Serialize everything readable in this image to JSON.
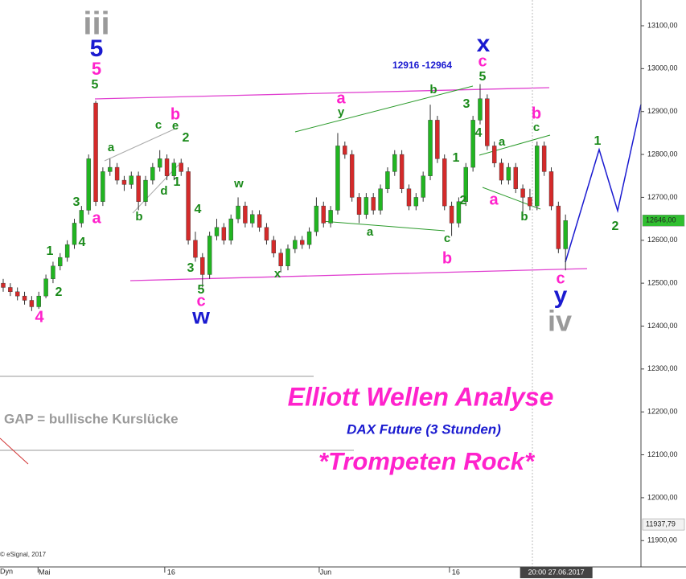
{
  "chart_data": {
    "type": "candlestick",
    "up_color": "#21b521",
    "down_color": "#d42a2a",
    "candles": [
      [
        12500,
        12510,
        12480,
        12490
      ],
      [
        12490,
        12500,
        12470,
        12480
      ],
      [
        12480,
        12490,
        12460,
        12470
      ],
      [
        12470,
        12480,
        12450,
        12460
      ],
      [
        12460,
        12470,
        12435,
        12445
      ],
      [
        12445,
        12480,
        12440,
        12470
      ],
      [
        12470,
        12520,
        12465,
        12510
      ],
      [
        12510,
        12550,
        12500,
        12540
      ],
      [
        12540,
        12570,
        12530,
        12560
      ],
      [
        12560,
        12600,
        12550,
        12590
      ],
      [
        12590,
        12650,
        12580,
        12640
      ],
      [
        12640,
        12680,
        12630,
        12670
      ],
      [
        12670,
        12800,
        12660,
        12790
      ],
      [
        12920,
        12925,
        12680,
        12690
      ],
      [
        12690,
        12770,
        12680,
        12760
      ],
      [
        12760,
        12790,
        12750,
        12770
      ],
      [
        12770,
        12780,
        12730,
        12740
      ],
      [
        12740,
        12750,
        12715,
        12730
      ],
      [
        12730,
        12760,
        12720,
        12750
      ],
      [
        12750,
        12760,
        12670,
        12690
      ],
      [
        12690,
        12750,
        12680,
        12740
      ],
      [
        12740,
        12780,
        12730,
        12770
      ],
      [
        12770,
        12810,
        12760,
        12790
      ],
      [
        12790,
        12800,
        12740,
        12750
      ],
      [
        12750,
        12790,
        12740,
        12780
      ],
      [
        12780,
        12790,
        12750,
        12760
      ],
      [
        12760,
        12770,
        12590,
        12600
      ],
      [
        12600,
        12620,
        12550,
        12560
      ],
      [
        12560,
        12570,
        12490,
        12520
      ],
      [
        12520,
        12620,
        12510,
        12610
      ],
      [
        12610,
        12650,
        12600,
        12630
      ],
      [
        12630,
        12640,
        12590,
        12600
      ],
      [
        12600,
        12660,
        12590,
        12650
      ],
      [
        12650,
        12700,
        12640,
        12680
      ],
      [
        12680,
        12690,
        12630,
        12640
      ],
      [
        12640,
        12670,
        12630,
        12660
      ],
      [
        12660,
        12670,
        12620,
        12630
      ],
      [
        12630,
        12640,
        12590,
        12600
      ],
      [
        12600,
        12610,
        12560,
        12570
      ],
      [
        12570,
        12580,
        12525,
        12540
      ],
      [
        12540,
        12590,
        12530,
        12580
      ],
      [
        12580,
        12610,
        12570,
        12600
      ],
      [
        12600,
        12610,
        12580,
        12590
      ],
      [
        12590,
        12630,
        12580,
        12620
      ],
      [
        12620,
        12700,
        12610,
        12680
      ],
      [
        12680,
        12690,
        12630,
        12640
      ],
      [
        12640,
        12680,
        12630,
        12670
      ],
      [
        12670,
        12850,
        12660,
        12820
      ],
      [
        12820,
        12830,
        12790,
        12800
      ],
      [
        12800,
        12810,
        12690,
        12700
      ],
      [
        12700,
        12710,
        12640,
        12660
      ],
      [
        12660,
        12710,
        12650,
        12700
      ],
      [
        12700,
        12710,
        12660,
        12670
      ],
      [
        12670,
        12730,
        12660,
        12720
      ],
      [
        12720,
        12770,
        12710,
        12760
      ],
      [
        12760,
        12810,
        12750,
        12800
      ],
      [
        12800,
        12810,
        12710,
        12720
      ],
      [
        12720,
        12730,
        12670,
        12680
      ],
      [
        12680,
        12710,
        12670,
        12700
      ],
      [
        12700,
        12760,
        12690,
        12750
      ],
      [
        12750,
        12916,
        12740,
        12880
      ],
      [
        12880,
        12890,
        12780,
        12790
      ],
      [
        12790,
        12800,
        12670,
        12680
      ],
      [
        12680,
        12690,
        12610,
        12640
      ],
      [
        12640,
        12700,
        12630,
        12690
      ],
      [
        12690,
        12780,
        12680,
        12770
      ],
      [
        12770,
        12890,
        12760,
        12880
      ],
      [
        12880,
        12964,
        12870,
        12930
      ],
      [
        12930,
        12940,
        12810,
        12820
      ],
      [
        12820,
        12830,
        12770,
        12780
      ],
      [
        12780,
        12790,
        12730,
        12740
      ],
      [
        12740,
        12780,
        12730,
        12770
      ],
      [
        12770,
        12780,
        12710,
        12720
      ],
      [
        12720,
        12730,
        12660,
        12700
      ],
      [
        12700,
        12720,
        12670,
        12680
      ],
      [
        12680,
        12830,
        12670,
        12820
      ],
      [
        12820,
        12830,
        12750,
        12760
      ],
      [
        12760,
        12770,
        12670,
        12680
      ],
      [
        12680,
        12690,
        12570,
        12580
      ],
      [
        12580,
        12660,
        12530,
        12646
      ]
    ],
    "xlim": [
      -0.45,
      89.6
    ],
    "xticks": [
      {
        "value": 5.8,
        "label": "Mai"
      },
      {
        "value": 23.6,
        "label": "16"
      },
      {
        "value": 45.3,
        "label": "Jun"
      },
      {
        "value": 63.6,
        "label": "16"
      }
    ],
    "cursor_label": {
      "value": 77.7,
      "label": "20:00 27.06.2017"
    },
    "ylim": [
      11848,
      13160
    ],
    "yticks": [
      {
        "value": 13100,
        "label": "13100,00"
      },
      {
        "value": 13000,
        "label": "13000,00"
      },
      {
        "value": 12900,
        "label": "12900,00"
      },
      {
        "value": 12800,
        "label": "12800,00"
      },
      {
        "value": 12700,
        "label": "12700,00"
      },
      {
        "value": 12600,
        "label": "12600,00"
      },
      {
        "value": 12500,
        "label": "12500,00"
      },
      {
        "value": 12400,
        "label": "12400,00"
      },
      {
        "value": 12300,
        "label": "12300,00"
      },
      {
        "value": 12200,
        "label": "12200,00"
      },
      {
        "value": 12100,
        "label": "12100,00"
      },
      {
        "value": 12000,
        "label": "12000,00"
      },
      {
        "value": 11900,
        "label": "11900,00"
      }
    ],
    "price_labels": [
      {
        "value": 12646,
        "label": "12646,00",
        "color": "#2fbf2f"
      },
      {
        "value": 11937.79,
        "label": "11937,79",
        "color": "#f2f2f2"
      }
    ],
    "annotations": [
      {
        "text": "iii",
        "color": "#9a9a9a"
      },
      {
        "text": "5",
        "color": "#1a1ad0"
      },
      {
        "text": "5",
        "color": "#ff22cc"
      },
      {
        "text": "5",
        "color": "#1a8a1a"
      },
      {
        "text": "a",
        "color": "#1a8a1a"
      },
      {
        "text": "b",
        "color": "#ff22cc"
      },
      {
        "text": "c",
        "color": "#1a8a1a"
      },
      {
        "text": "e",
        "color": "#1a8a1a"
      },
      {
        "text": "2",
        "color": "#1a8a1a"
      },
      {
        "text": "1",
        "color": "#1a8a1a"
      },
      {
        "text": "d",
        "color": "#1a8a1a"
      },
      {
        "text": "b",
        "color": "#1a8a1a"
      },
      {
        "text": "3",
        "color": "#1a8a1a"
      },
      {
        "text": "4",
        "color": "#1a8a1a"
      },
      {
        "text": "a",
        "color": "#ff22cc"
      },
      {
        "text": "1",
        "color": "#1a8a1a"
      },
      {
        "text": "2",
        "color": "#1a8a1a"
      },
      {
        "text": "4",
        "color": "#ff22cc"
      },
      {
        "text": "4",
        "color": "#1a8a1a"
      },
      {
        "text": "3",
        "color": "#1a8a1a"
      },
      {
        "text": "5",
        "color": "#1a8a1a"
      },
      {
        "text": "c",
        "color": "#ff22cc"
      },
      {
        "text": "w",
        "color": "#1a1ad0"
      },
      {
        "text": "w",
        "color": "#1a8a1a"
      },
      {
        "text": "x",
        "color": "#1a8a1a"
      },
      {
        "text": "a",
        "color": "#ff22cc"
      },
      {
        "text": "y",
        "color": "#1a8a1a"
      },
      {
        "text": "a",
        "color": "#1a8a1a"
      },
      {
        "text": "c",
        "color": "#1a8a1a"
      },
      {
        "text": "b",
        "color": "#ff22cc"
      },
      {
        "text": "b",
        "color": "#1a8a1a"
      },
      {
        "text": "1",
        "color": "#1a8a1a"
      },
      {
        "text": "2",
        "color": "#1a8a1a"
      },
      {
        "text": "3",
        "color": "#1a8a1a"
      },
      {
        "text": "4",
        "color": "#1a8a1a"
      },
      {
        "text": "x",
        "color": "#1a1ad0"
      },
      {
        "text": "c",
        "color": "#ff22cc"
      },
      {
        "text": "5",
        "color": "#1a8a1a"
      },
      {
        "text": "12916 -12964",
        "color": "#1a1ad0"
      },
      {
        "text": "a",
        "color": "#1a8a1a"
      },
      {
        "text": "a",
        "color": "#ff22cc"
      },
      {
        "text": "b",
        "color": "#ff22cc"
      },
      {
        "text": "c",
        "color": "#1a8a1a"
      },
      {
        "text": "b",
        "color": "#1a8a1a"
      },
      {
        "text": "c",
        "color": "#ff22cc"
      },
      {
        "text": "y",
        "color": "#1a1ad0"
      },
      {
        "text": "iv",
        "color": "#9a9a9a"
      },
      {
        "text": "1",
        "color": "#1a8a1a"
      },
      {
        "text": "2",
        "color": "#1a8a1a"
      }
    ],
    "title": "Elliott Wellen Analyse",
    "subtitle": "DAX Future (3 Stunden)",
    "headline": "*Trompeten Rock*",
    "note": "GAP = bullische Kurslücke",
    "source": "© eSignal, 2017",
    "study": "Dyn"
  }
}
